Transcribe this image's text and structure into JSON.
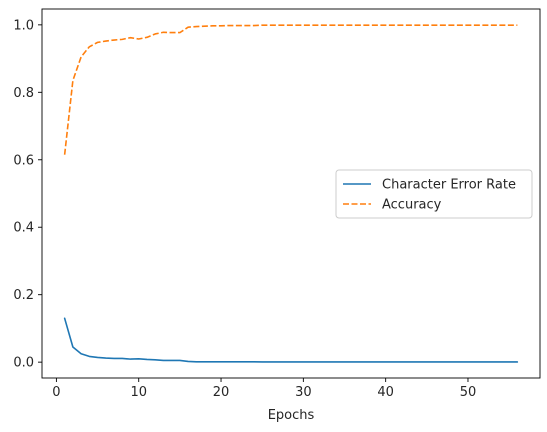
{
  "chart_data": {
    "type": "line",
    "title": "",
    "xlabel": "Epochs",
    "ylabel": "",
    "xlim": [
      -1.75,
      58.75
    ],
    "ylim": [
      -0.047,
      1.047
    ],
    "xticks": [
      0,
      10,
      20,
      30,
      40,
      50
    ],
    "xtick_labels": [
      "0",
      "10",
      "20",
      "30",
      "40",
      "50"
    ],
    "yticks": [
      0.0,
      0.2,
      0.4,
      0.6,
      0.8,
      1.0
    ],
    "ytick_labels": [
      "0.0",
      "0.2",
      "0.4",
      "0.6",
      "0.8",
      "1.0"
    ],
    "grid": false,
    "legend_position": "center-right",
    "series": [
      {
        "name": "Character Error Rate",
        "color": "#1f77b4",
        "style": "solid",
        "x": [
          1,
          2,
          3,
          4,
          5,
          6,
          7,
          8,
          9,
          10,
          11,
          12,
          13,
          14,
          15,
          16,
          17,
          18,
          19,
          20,
          21,
          22,
          23,
          24,
          25,
          26,
          27,
          28,
          29,
          30,
          31,
          32,
          33,
          34,
          35,
          36,
          37,
          38,
          39,
          40,
          41,
          42,
          43,
          44,
          45,
          46,
          47,
          48,
          49,
          50,
          51,
          52,
          53,
          54,
          55,
          56
        ],
        "values": [
          0.13,
          0.045,
          0.025,
          0.017,
          0.014,
          0.012,
          0.011,
          0.011,
          0.009,
          0.01,
          0.008,
          0.007,
          0.005,
          0.005,
          0.005,
          0.002,
          0.001,
          0.001,
          0.001,
          0.001,
          0.001,
          0.001,
          0.001,
          0.001,
          0.0005,
          0.0005,
          0.0005,
          0.0005,
          0.0005,
          0.0005,
          0.0005,
          0.0005,
          0.0005,
          0.0005,
          0.0005,
          0.0005,
          0.0005,
          0.0005,
          0.0005,
          0.0005,
          0.0005,
          0.0005,
          0.0005,
          0.0005,
          0.0005,
          0.0005,
          0.0005,
          0.0005,
          0.0005,
          0.0005,
          0.0005,
          0.0005,
          0.0005,
          0.0005,
          0.0005,
          0.0005
        ]
      },
      {
        "name": "Accuracy",
        "color": "#ff7f0e",
        "style": "dashed",
        "x": [
          1,
          2,
          3,
          4,
          5,
          6,
          7,
          8,
          9,
          10,
          11,
          12,
          13,
          14,
          15,
          16,
          17,
          18,
          19,
          20,
          21,
          22,
          23,
          24,
          25,
          26,
          27,
          28,
          29,
          30,
          31,
          32,
          33,
          34,
          35,
          36,
          37,
          38,
          39,
          40,
          41,
          42,
          43,
          44,
          45,
          46,
          47,
          48,
          49,
          50,
          51,
          52,
          53,
          54,
          55,
          56
        ],
        "values": [
          0.615,
          0.835,
          0.905,
          0.935,
          0.948,
          0.952,
          0.955,
          0.957,
          0.962,
          0.958,
          0.963,
          0.973,
          0.978,
          0.977,
          0.977,
          0.993,
          0.995,
          0.996,
          0.997,
          0.997,
          0.998,
          0.998,
          0.998,
          0.998,
          0.999,
          0.999,
          0.999,
          0.999,
          0.999,
          0.999,
          0.999,
          0.999,
          0.999,
          0.999,
          0.999,
          0.999,
          0.999,
          0.999,
          0.999,
          0.999,
          0.999,
          0.999,
          0.999,
          0.999,
          0.999,
          0.999,
          0.999,
          0.999,
          0.999,
          0.999,
          0.999,
          0.999,
          0.999,
          0.999,
          0.999,
          0.999
        ]
      }
    ]
  }
}
